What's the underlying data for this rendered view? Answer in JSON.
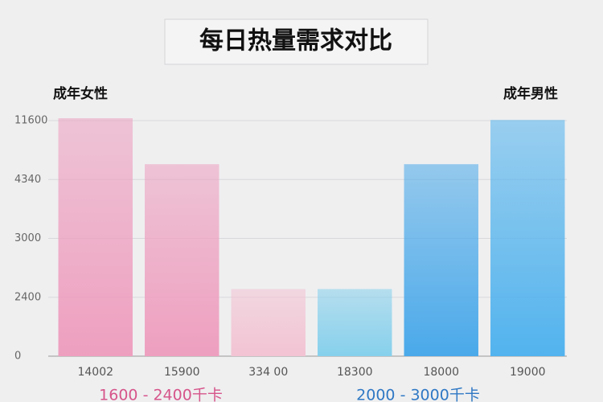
{
  "chart_data": {
    "type": "bar",
    "title": "每日热量需求对比",
    "group_labels": [
      "成年女性",
      "成年男性"
    ],
    "categories": [
      "14002",
      "15900",
      "334 00",
      "18300",
      "18000",
      "19000"
    ],
    "values": [
      4.04,
      3.26,
      1.14,
      1.14,
      3.26,
      4.01
    ],
    "colors": [
      "#ee9fbf",
      "#ee9fbf",
      "#f2c3d3",
      "#86d0ec",
      "#4aa9ea",
      "#52b3ee"
    ],
    "ylim": [
      0,
      4
    ],
    "yticks": [
      0,
      {
        "value": 1,
        "label": "2400"
      },
      {
        "value": 2,
        "label": "3000"
      },
      {
        "value": 3,
        "label": "4340"
      },
      {
        "value": 4,
        "label": "11600"
      }
    ],
    "grid": true,
    "range_labels": [
      {
        "text": "1600 - 2400千卡",
        "color": "#d6558a"
      },
      {
        "text": "2000 - 3000千卡",
        "color": "#2f78c4"
      }
    ]
  }
}
